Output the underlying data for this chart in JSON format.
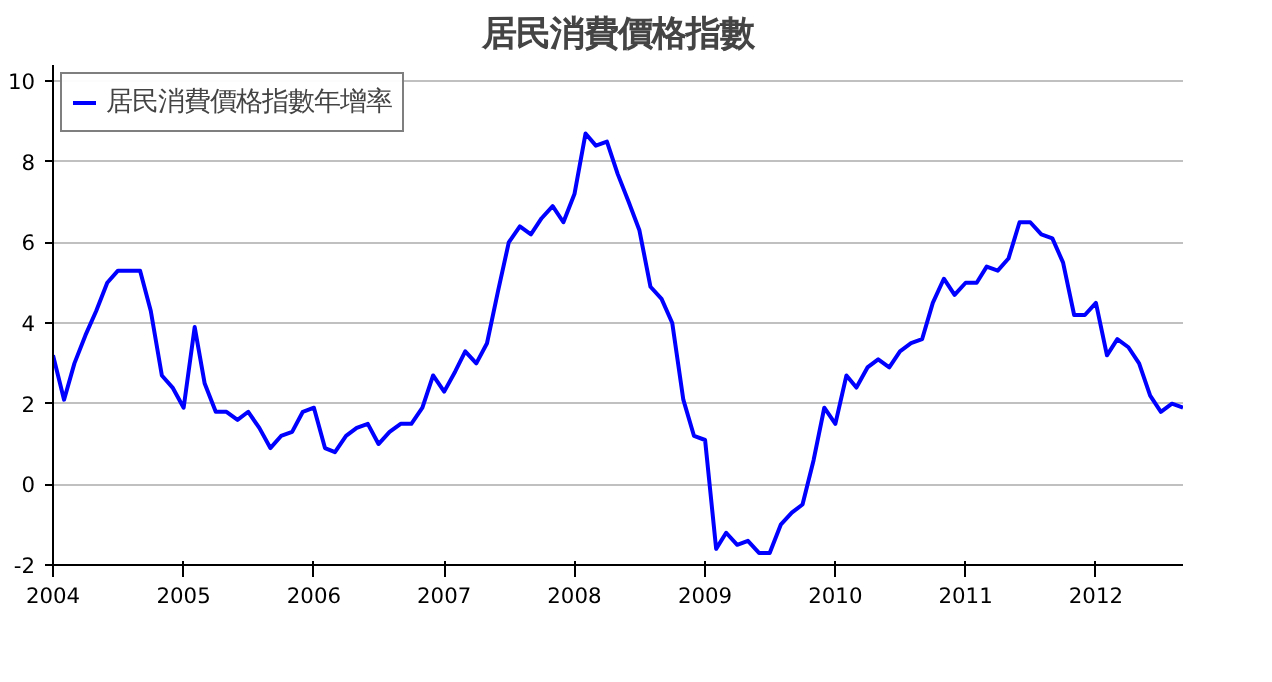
{
  "chart_data": {
    "type": "line",
    "title": "居民消費價格指數",
    "x": [
      "2004-01",
      "2004-02",
      "2004-03",
      "2004-04",
      "2004-05",
      "2004-06",
      "2004-07",
      "2004-08",
      "2004-09",
      "2004-10",
      "2004-11",
      "2004-12",
      "2005-01",
      "2005-02",
      "2005-03",
      "2005-04",
      "2005-05",
      "2005-06",
      "2005-07",
      "2005-08",
      "2005-09",
      "2005-10",
      "2005-11",
      "2005-12",
      "2006-01",
      "2006-02",
      "2006-03",
      "2006-04",
      "2006-05",
      "2006-06",
      "2006-07",
      "2006-08",
      "2006-09",
      "2006-10",
      "2006-11",
      "2006-12",
      "2007-01",
      "2007-02",
      "2007-03",
      "2007-04",
      "2007-05",
      "2007-06",
      "2007-07",
      "2007-08",
      "2007-09",
      "2007-10",
      "2007-11",
      "2007-12",
      "2008-01",
      "2008-02",
      "2008-03",
      "2008-04",
      "2008-05",
      "2008-06",
      "2008-07",
      "2008-08",
      "2008-09",
      "2008-10",
      "2008-11",
      "2008-12",
      "2009-01",
      "2009-02",
      "2009-03",
      "2009-04",
      "2009-05",
      "2009-06",
      "2009-07",
      "2009-08",
      "2009-09",
      "2009-10",
      "2009-11",
      "2009-12",
      "2010-01",
      "2010-02",
      "2010-03",
      "2010-04",
      "2010-05",
      "2010-06",
      "2010-07",
      "2010-08",
      "2010-09",
      "2010-10",
      "2010-11",
      "2010-12",
      "2011-01",
      "2011-02",
      "2011-03",
      "2011-04",
      "2011-05",
      "2011-06",
      "2011-07",
      "2011-08",
      "2011-09",
      "2011-10",
      "2011-11",
      "2011-12",
      "2012-01",
      "2012-02",
      "2012-03",
      "2012-04",
      "2012-05",
      "2012-06",
      "2012-07",
      "2012-08",
      "2012-09"
    ],
    "series": [
      {
        "name": "居民消費價格指數年增率",
        "color": "#0000ff",
        "values": [
          3.2,
          2.1,
          3.0,
          3.7,
          4.3,
          5.0,
          5.3,
          5.3,
          5.3,
          4.3,
          2.7,
          2.4,
          1.9,
          3.9,
          2.5,
          1.8,
          1.8,
          1.6,
          1.8,
          1.4,
          0.9,
          1.2,
          1.3,
          1.8,
          1.9,
          0.9,
          0.8,
          1.2,
          1.4,
          1.5,
          1.0,
          1.3,
          1.5,
          1.5,
          1.9,
          2.7,
          2.3,
          2.8,
          3.3,
          3.0,
          3.5,
          4.8,
          6.0,
          6.4,
          6.2,
          6.6,
          6.9,
          6.5,
          7.2,
          8.7,
          8.4,
          8.5,
          7.7,
          7.0,
          6.3,
          4.9,
          4.6,
          4.0,
          2.1,
          1.2,
          1.1,
          -1.6,
          -1.2,
          -1.5,
          -1.4,
          -1.7,
          -1.7,
          -1.0,
          -0.7,
          -0.5,
          0.6,
          1.9,
          1.5,
          2.7,
          2.4,
          2.9,
          3.1,
          2.9,
          3.3,
          3.5,
          3.6,
          4.5,
          5.1,
          4.7,
          5.0,
          5.0,
          5.4,
          5.3,
          5.6,
          6.5,
          6.5,
          6.2,
          6.1,
          5.5,
          4.2,
          4.2,
          4.5,
          3.2,
          3.6,
          3.4,
          3.0,
          2.2,
          1.8,
          2.0,
          1.9
        ]
      }
    ],
    "xlim": [
      "2004-01",
      "2012-09"
    ],
    "xticks": [
      {
        "value": "2004-01",
        "label": "2004"
      },
      {
        "value": "2005-01",
        "label": "2005"
      },
      {
        "value": "2006-01",
        "label": "2006"
      },
      {
        "value": "2007-01",
        "label": "2007"
      },
      {
        "value": "2008-01",
        "label": "2008"
      },
      {
        "value": "2009-01",
        "label": "2009"
      },
      {
        "value": "2010-01",
        "label": "2010"
      },
      {
        "value": "2011-01",
        "label": "2011"
      },
      {
        "value": "2012-01",
        "label": "2012"
      }
    ],
    "ylim": [
      -2,
      10.4
    ],
    "yticks": [
      -2,
      0,
      2,
      4,
      6,
      8,
      10
    ],
    "grid": "y",
    "legend": "top left",
    "line_style": "solid"
  }
}
